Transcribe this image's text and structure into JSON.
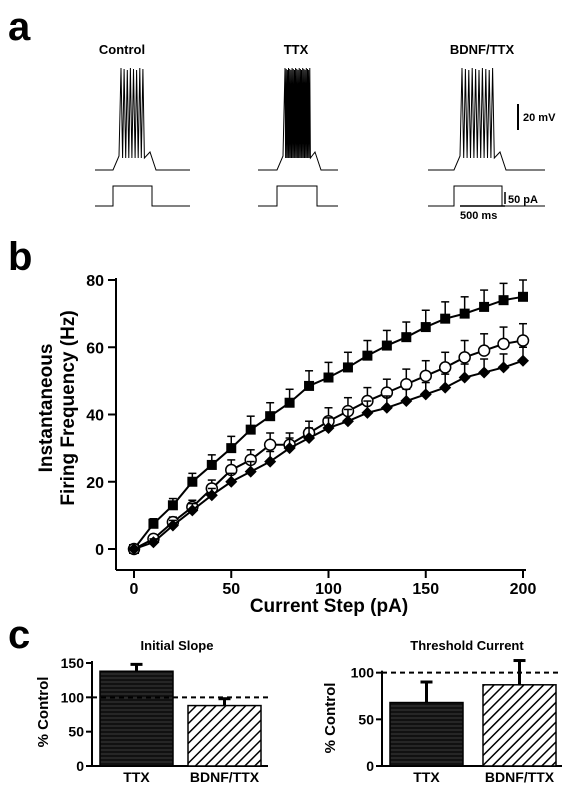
{
  "panels": {
    "a": "a",
    "b": "b",
    "c": "c"
  },
  "chart_data": [
    {
      "panel": "a",
      "type": "line",
      "traces": [
        {
          "label": "Control",
          "spikes": 8
        },
        {
          "label": "TTX",
          "spikes": 22
        },
        {
          "label": "BDNF/TTX",
          "spikes": 10
        }
      ],
      "scale_bars": {
        "voltage": "20 mV",
        "current": "50 pA",
        "time": "500 ms"
      }
    },
    {
      "panel": "b",
      "type": "scatter",
      "xlabel": "Current Step (pA)",
      "ylabel_lines": [
        "Instantaneous",
        "Firing Frequency (Hz)"
      ],
      "xlim": [
        0,
        200
      ],
      "ylim": [
        0,
        80
      ],
      "xticks": [
        0,
        50,
        100,
        150,
        200
      ],
      "yticks": [
        0,
        20,
        40,
        60,
        80
      ],
      "x": [
        0,
        10,
        20,
        30,
        40,
        50,
        60,
        70,
        80,
        90,
        100,
        110,
        120,
        130,
        140,
        150,
        160,
        170,
        180,
        190,
        200
      ],
      "series": [
        {
          "marker": "filled-square",
          "values": [
            0,
            7.5,
            13,
            20,
            25,
            30,
            35.5,
            39.5,
            43.5,
            48.5,
            51,
            54,
            57.5,
            60.5,
            63,
            66,
            68.5,
            70,
            72,
            74,
            75
          ],
          "errors": [
            0.5,
            1.5,
            2,
            2.5,
            3,
            3.5,
            4,
            4,
            4,
            4.5,
            4.5,
            4.5,
            4.5,
            4.5,
            4.5,
            5,
            5,
            5,
            5,
            5,
            5
          ]
        },
        {
          "marker": "open-circle",
          "values": [
            0,
            3,
            8,
            12.5,
            18,
            23.5,
            26.5,
            31,
            31,
            34.5,
            38,
            41,
            44,
            46.5,
            49,
            51.5,
            54,
            57,
            59,
            61,
            62
          ],
          "errors": [
            0.5,
            1,
            1.5,
            2,
            2.5,
            3,
            3,
            3.5,
            3.5,
            3.5,
            4,
            4,
            4,
            4,
            4.5,
            4.5,
            4.5,
            5,
            5,
            5,
            5
          ]
        },
        {
          "marker": "filled-diamond",
          "values": [
            0,
            2,
            7,
            11.5,
            16,
            20,
            23,
            26,
            30,
            33,
            36,
            38,
            40.5,
            42,
            44,
            46,
            48,
            51,
            52.5,
            54,
            56
          ],
          "errors": [
            0.5,
            1,
            1.5,
            2,
            2,
            2.5,
            3,
            3,
            3,
            3,
            3,
            3.5,
            3.5,
            3.5,
            3.5,
            3.5,
            4,
            4,
            4,
            4,
            4
          ]
        }
      ]
    },
    {
      "panel": "c-left",
      "type": "bar",
      "title": "Initial Slope",
      "ylabel": "% Control",
      "categories": [
        "TTX",
        "BDNF/TTX"
      ],
      "values": [
        138,
        88
      ],
      "errors": [
        10,
        10
      ],
      "reference": 100,
      "ylim": [
        0,
        150
      ],
      "yticks": [
        0,
        50,
        100,
        150
      ]
    },
    {
      "panel": "c-right",
      "type": "bar",
      "title": "Threshold Current",
      "ylabel": "% Control",
      "categories": [
        "TTX",
        "BDNF/TTX"
      ],
      "values": [
        68,
        87
      ],
      "errors": [
        22,
        26
      ],
      "reference": 100,
      "ylim": [
        0,
        120
      ],
      "yticks": [
        0,
        50,
        100
      ]
    }
  ]
}
